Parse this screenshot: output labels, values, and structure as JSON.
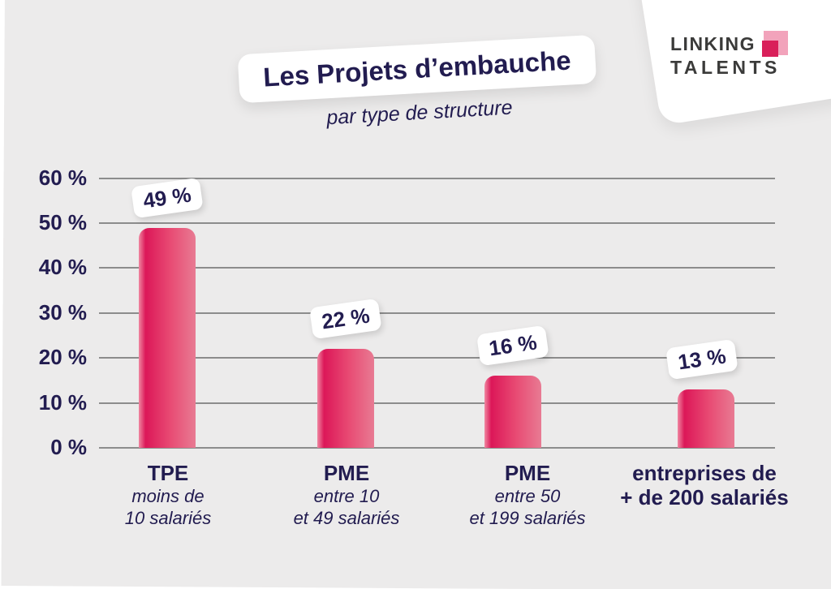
{
  "brand": {
    "line1": "LINKING",
    "line2": "TALENTS"
  },
  "title": "Les Projets d’embauche",
  "subtitle": "par type de structure",
  "colors": {
    "navy": "#221c50",
    "bg_gray": "#ECEBEB",
    "grid": "#8c8c8c",
    "pink_edge": "#ef87a1",
    "pink_dark": "#dc1758",
    "pink_mid": "#e84a73",
    "pink_soft": "#e87b93",
    "logo_gray": "#3b3b3a",
    "logo_pink_light": "#f2a3bb",
    "logo_pink_dark": "#d9205a"
  },
  "chart_data": {
    "type": "bar",
    "title": "Les Projets d’embauche",
    "subtitle": "par type de structure",
    "categories": [
      {
        "name": "TPE",
        "sublines": [
          "moins de",
          "10 salariés"
        ],
        "sub_style": "italic"
      },
      {
        "name": "PME",
        "sublines": [
          "entre 10",
          "et 49 salariés"
        ],
        "sub_style": "italic"
      },
      {
        "name": "PME",
        "sublines": [
          "entre 50",
          "et 199 salariés"
        ],
        "sub_style": "italic"
      },
      {
        "name": "entreprises de",
        "sublines": [
          "+ de 200 salariés"
        ],
        "sub_style": "bold"
      }
    ],
    "values": [
      49,
      22,
      16,
      13
    ],
    "value_labels": [
      "49 %",
      "22 %",
      "16 %",
      "13 %"
    ],
    "xlabel": "",
    "ylabel": "",
    "ylim": [
      0,
      60
    ],
    "ytick_values": [
      60,
      50,
      40,
      30,
      20,
      10,
      0
    ],
    "ytick_labels": [
      "60 %",
      "50 %",
      "40 %",
      "30 %",
      "20 %",
      "10 %",
      "0 %"
    ],
    "grid": true,
    "legend": false
  }
}
